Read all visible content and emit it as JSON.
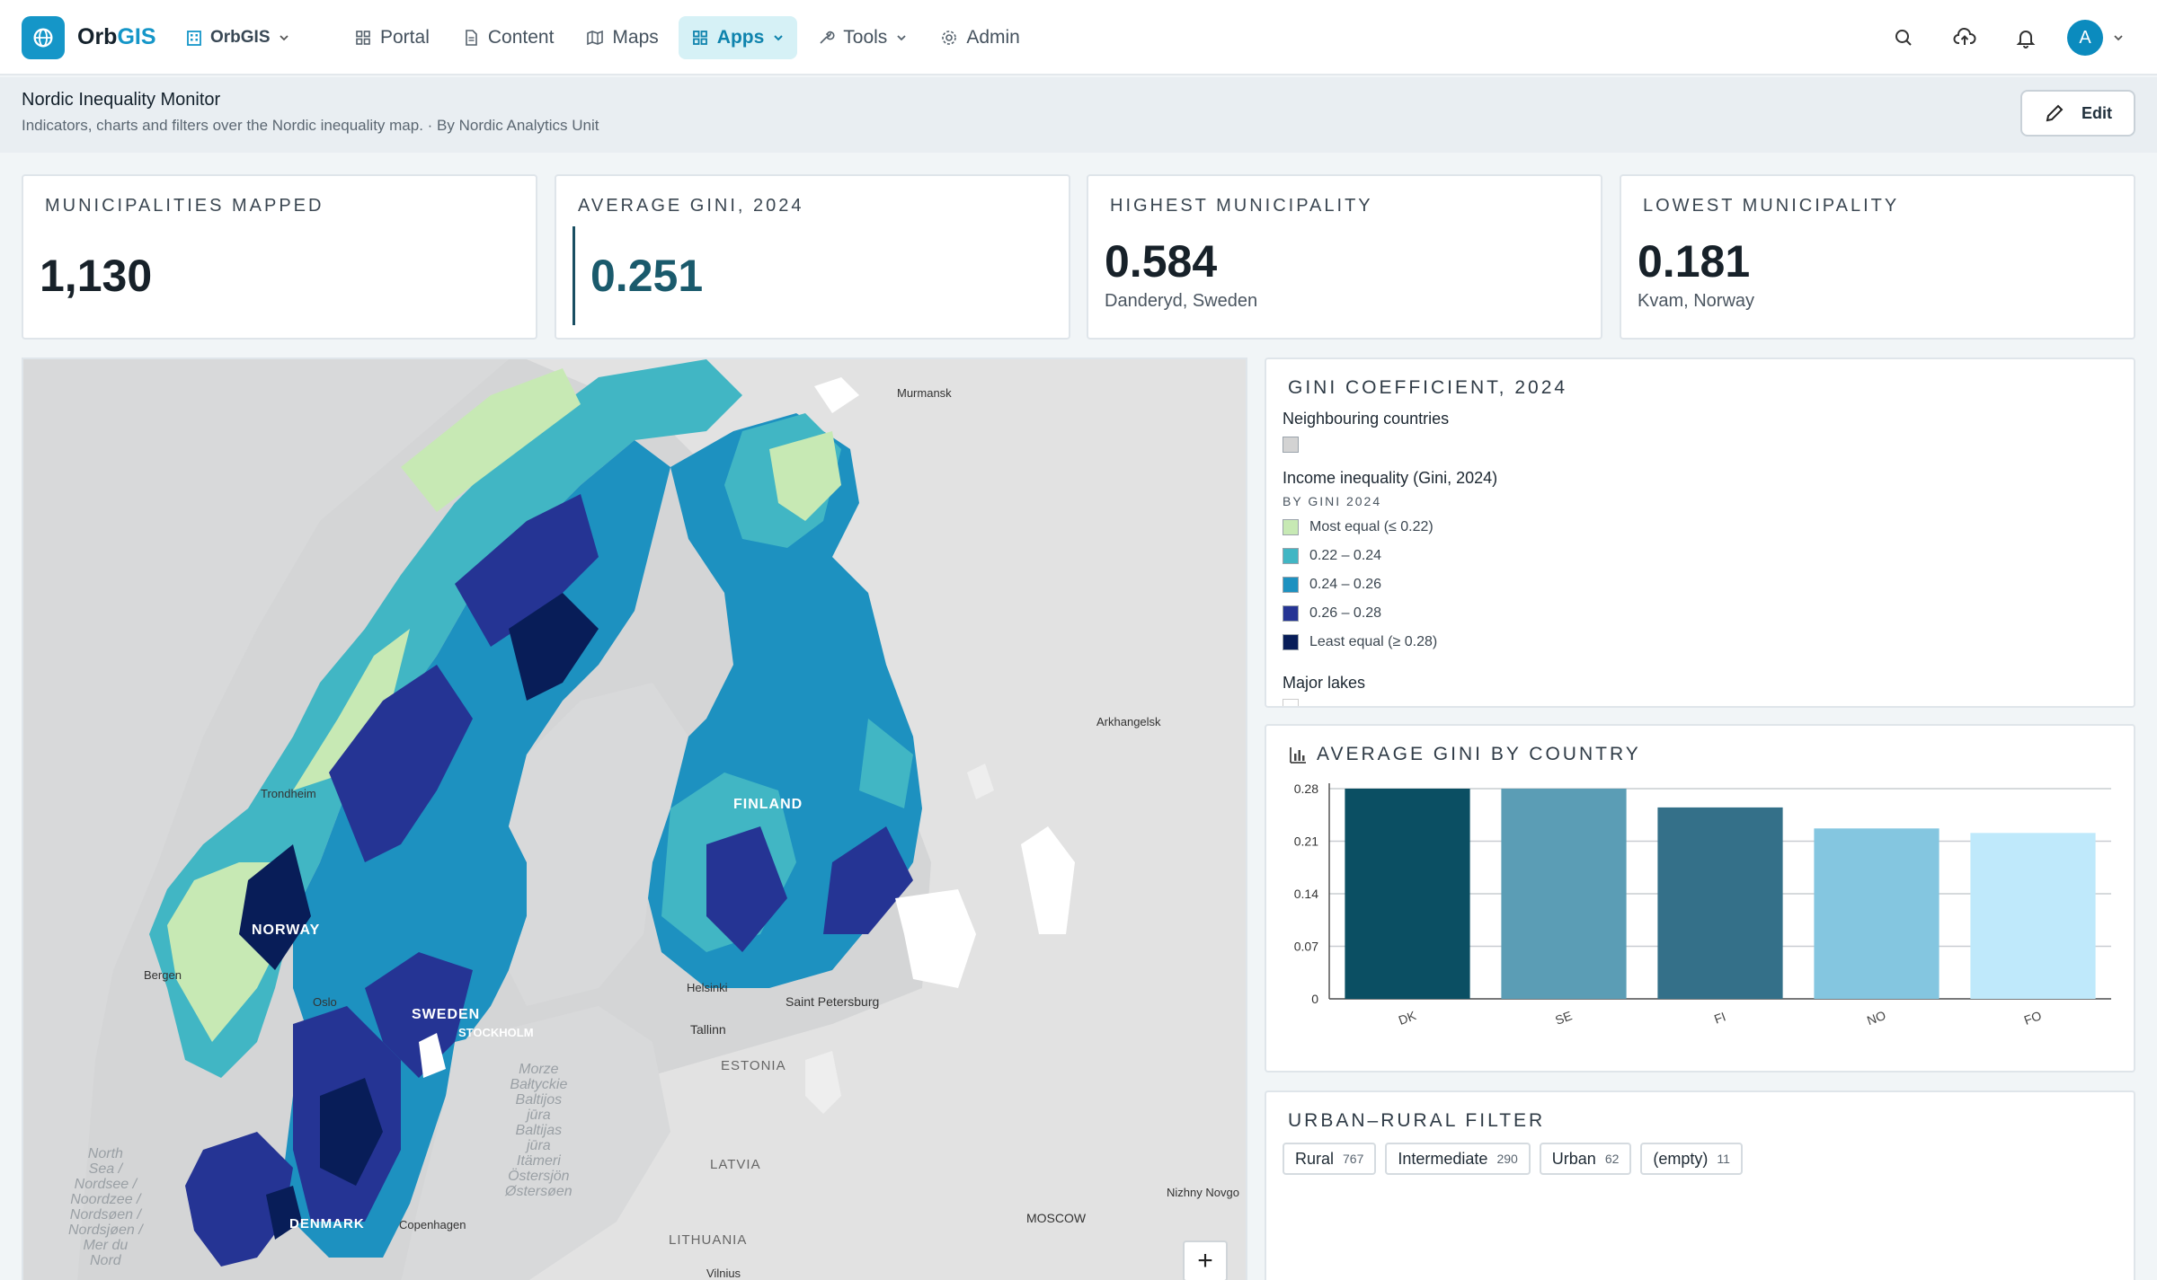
{
  "app": {
    "name_part1": "Orb",
    "name_part2": "GIS",
    "org_label": "OrbGIS"
  },
  "nav": [
    {
      "label": "Portal",
      "icon": "grid-icon"
    },
    {
      "label": "Content",
      "icon": "file-icon"
    },
    {
      "label": "Maps",
      "icon": "map-icon"
    },
    {
      "label": "Apps",
      "icon": "apps-icon",
      "active": true
    },
    {
      "label": "Tools",
      "icon": "wrench-icon"
    },
    {
      "label": "Admin",
      "icon": "gear-icon"
    }
  ],
  "user": {
    "initial": "A"
  },
  "page": {
    "title": "Nordic Inequality Monitor",
    "subtitle": "Indicators, charts and filters over the Nordic inequality map. · By Nordic Analytics Unit",
    "edit_label": "Edit"
  },
  "kpis": [
    {
      "label": "MUNICIPALITIES MAPPED",
      "value": "1,130"
    },
    {
      "label": "AVERAGE GINI, 2024",
      "value": "0.251"
    },
    {
      "label": "HIGHEST MUNICIPALITY",
      "value": "0.584",
      "sub": "Danderyd, Sweden"
    },
    {
      "label": "LOWEST MUNICIPALITY",
      "value": "0.181",
      "sub": "Kvam, Norway"
    }
  ],
  "map": {
    "labels": {
      "murmansk": "Murmansk",
      "arkhangelsk": "Arkhangelsk",
      "trondheim": "Trondheim",
      "finland": "FINLAND",
      "norway": "NORWAY",
      "sweden": "SWEDEN",
      "stockholm": "STOCKHOLM",
      "bergen": "Bergen",
      "oslo": "Oslo",
      "helsinki": "Helsinki",
      "st_petersburg": "Saint Petersburg",
      "tallinn": "Tallinn",
      "estonia": "ESTONIA",
      "latvia": "LATVIA",
      "lithuania": "LITHUANIA",
      "moscow": "MOSCOW",
      "nizhny": "Nizhny Novgo",
      "vilnius": "Vilnius",
      "denmark": "DENMARK",
      "copenhagen": "Copenhagen",
      "north_sea": "North\nSea /\nNordsee /\nNoordzee /\nNordsøen /\nNordsjøen /\nMer du\nNord",
      "baltic": "Morze\nBałtyckie\nBaltijos\njūra\nBaltijas\njūra\nItämeri\nÖstersjön\nØstersøen"
    },
    "zoom_in": "+"
  },
  "legend": {
    "title": "GINI COEFFICIENT, 2024",
    "neighbouring": "Neighbouring countries",
    "neighbour_color": "#d3d3d3",
    "inequality_heading": "Income inequality (Gini, 2024)",
    "by_label": "BY GINI 2024",
    "classes": [
      {
        "label": "Most equal (≤ 0.22)",
        "color": "#c7e9b4"
      },
      {
        "label": "0.22 – 0.24",
        "color": "#41b6c4"
      },
      {
        "label": "0.24 – 0.26",
        "color": "#1d91c0"
      },
      {
        "label": "0.26 – 0.28",
        "color": "#253494"
      },
      {
        "label": "Least equal (≥ 0.28)",
        "color": "#081d58"
      }
    ],
    "lakes": "Major lakes"
  },
  "chart_panel": {
    "title": "AVERAGE GINI BY COUNTRY",
    "icon": "bar-chart-icon"
  },
  "chart_data": {
    "type": "bar",
    "categories": [
      "DK",
      "SE",
      "FI",
      "NO",
      "FO"
    ],
    "values": [
      0.28,
      0.28,
      0.255,
      0.227,
      0.221
    ],
    "colors": [
      "#0b4f63",
      "#5b9db5",
      "#347089",
      "#84c6e0",
      "#bfe9fb"
    ],
    "ylim": [
      0,
      0.28
    ],
    "yticks": [
      "0",
      "0.07",
      "0.14",
      "0.21",
      "0.28"
    ],
    "grid": true
  },
  "filter": {
    "title": "URBAN–RURAL FILTER",
    "chips": [
      {
        "label": "Rural",
        "count": "767"
      },
      {
        "label": "Intermediate",
        "count": "290"
      },
      {
        "label": "Urban",
        "count": "62"
      },
      {
        "label": "(empty)",
        "count": "11"
      }
    ]
  }
}
